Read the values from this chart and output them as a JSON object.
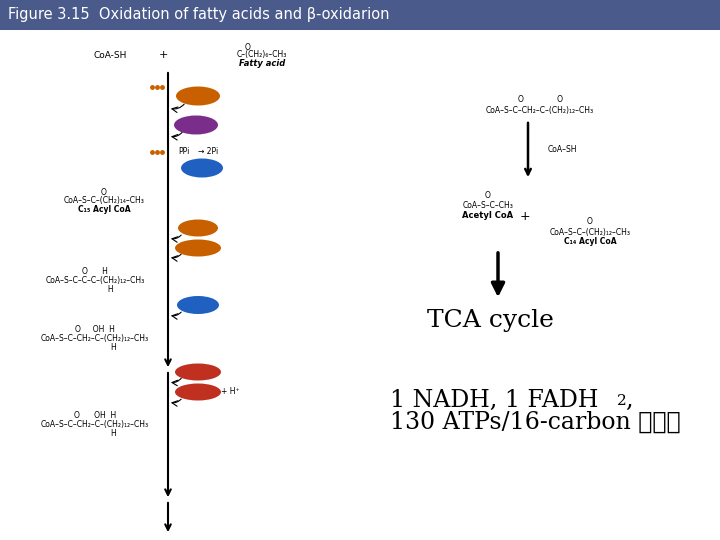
{
  "title": "Figure 3.15  Oxidation of fatty acids and β-oxidarion",
  "title_bg": "#4a5a8a",
  "title_color": "#ffffff",
  "main_bg": "#ffffff",
  "tca_text": "TCA cycle",
  "bottom_text_line1": "1 NADH, 1 FADH",
  "bottom_text_sub": "2",
  "bottom_text_comma": ",",
  "bottom_text_line2": "130 ATPs/16-carbon 지방산",
  "atp_color": "#c86000",
  "amp_color": "#7b2d8b",
  "fad_color": "#c86000",
  "fadh2_color": "#c86000",
  "h2o_color": "#2060c0",
  "nad_color": "#c03020",
  "nadh_color": "#c03020",
  "white_text": "#ffffff",
  "black": "#000000",
  "arrow_color": "#333333"
}
